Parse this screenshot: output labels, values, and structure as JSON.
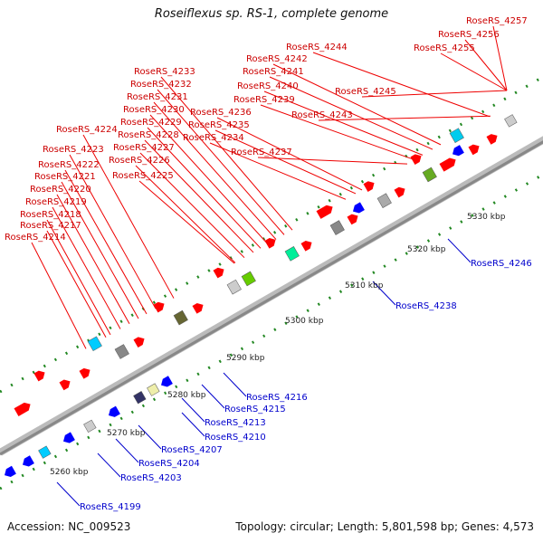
{
  "title": "Roseiflexus sp. RS-1, complete genome",
  "footer": {
    "accession": "Accession: NC_009523",
    "summary": "Topology: circular; Length: 5,801,598 bp; Genes: 4,573"
  },
  "colors": {
    "forward_gene": "#ff0000",
    "reverse_gene": "#0000ff",
    "forward_label": "#cc0000",
    "reverse_label": "#0000cc",
    "backbone": "#999999",
    "tick": "#228822"
  },
  "scale_labels": [
    "5260 kbp",
    "5270 kbp",
    "5280 kbp",
    "5290 kbp",
    "5300 kbp",
    "5310 kbp",
    "5320 kbp",
    "5330 kbp"
  ],
  "forward_labels": [
    "RoseRS_4214",
    "RoseRS_4217",
    "RoseRS_4218",
    "RoseRS_4219",
    "RoseRS_4220",
    "RoseRS_4221",
    "RoseRS_4222",
    "RoseRS_4223",
    "RoseRS_4224",
    "RoseRS_4225",
    "RoseRS_4226",
    "RoseRS_4227",
    "RoseRS_4228",
    "RoseRS_4229",
    "RoseRS_4230",
    "RoseRS_4231",
    "RoseRS_4232",
    "RoseRS_4233",
    "RoseRS_4234",
    "RoseRS_4235",
    "RoseRS_4236",
    "RoseRS_4237",
    "RoseRS_4239",
    "RoseRS_4240",
    "RoseRS_4241",
    "RoseRS_4242",
    "RoseRS_4243",
    "RoseRS_4244",
    "RoseRS_4245",
    "RoseRS_4255",
    "RoseRS_4256",
    "RoseRS_4257"
  ],
  "reverse_labels": [
    "RoseRS_4199",
    "RoseRS_4203",
    "RoseRS_4204",
    "RoseRS_4207",
    "RoseRS_4210",
    "RoseRS_4213",
    "RoseRS_4215",
    "RoseRS_4216",
    "RoseRS_4238",
    "RoseRS_4246"
  ]
}
